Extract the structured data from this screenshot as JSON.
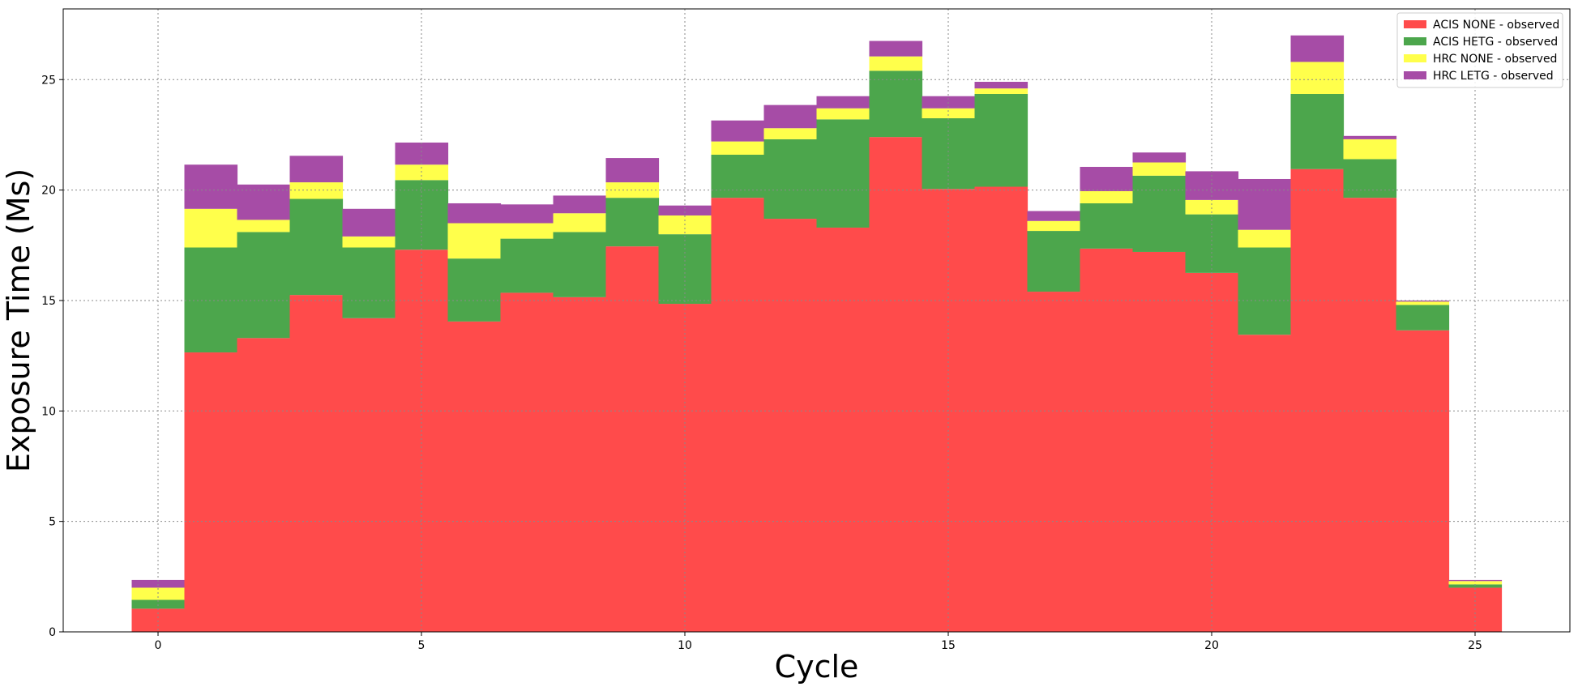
{
  "chart_data": {
    "type": "bar",
    "stacked": true,
    "bar_style": "step",
    "xlabel": "Cycle",
    "ylabel": "Exposure Time (Ms)",
    "x": [
      0,
      1,
      2,
      3,
      4,
      5,
      6,
      7,
      8,
      9,
      10,
      11,
      12,
      13,
      14,
      15,
      16,
      17,
      18,
      19,
      20,
      21,
      22,
      23,
      24,
      25
    ],
    "xlim": [
      -1.8,
      26.8
    ],
    "ylim": [
      0,
      28.2
    ],
    "xticks": [
      0,
      5,
      10,
      15,
      20,
      25
    ],
    "yticks": [
      0,
      5,
      10,
      15,
      20,
      25
    ],
    "grid": true,
    "legend_position": "top-right",
    "series": [
      {
        "name": "ACIS NONE - observed",
        "color": "#ff4b4b",
        "values": [
          1.05,
          12.65,
          13.3,
          15.25,
          14.2,
          17.3,
          14.05,
          15.35,
          15.15,
          17.45,
          14.85,
          19.65,
          18.7,
          18.3,
          22.4,
          20.05,
          20.15,
          15.4,
          17.35,
          17.2,
          16.25,
          13.45,
          20.95,
          19.65,
          13.65,
          2.0
        ]
      },
      {
        "name": "ACIS HETG - observed",
        "color": "#4ca64c",
        "values": [
          0.4,
          4.75,
          4.8,
          4.35,
          3.2,
          3.15,
          2.85,
          2.45,
          2.95,
          2.2,
          3.15,
          1.95,
          3.6,
          4.9,
          3.0,
          3.2,
          4.2,
          2.75,
          2.05,
          3.45,
          2.65,
          3.95,
          3.4,
          1.75,
          1.15,
          0.15
        ]
      },
      {
        "name": "HRC NONE - observed",
        "color": "#ffff4b",
        "values": [
          0.55,
          1.75,
          0.55,
          0.75,
          0.5,
          0.7,
          1.6,
          0.7,
          0.85,
          0.7,
          0.85,
          0.6,
          0.5,
          0.5,
          0.65,
          0.45,
          0.25,
          0.45,
          0.55,
          0.6,
          0.65,
          0.8,
          1.45,
          0.9,
          0.15,
          0.15
        ]
      },
      {
        "name": "HRC LETG - observed",
        "color": "#a64ca6",
        "values": [
          0.35,
          2.0,
          1.6,
          1.2,
          1.25,
          1.0,
          0.9,
          0.85,
          0.8,
          1.1,
          0.45,
          0.95,
          1.05,
          0.55,
          0.7,
          0.55,
          0.3,
          0.45,
          1.1,
          0.45,
          1.3,
          2.3,
          1.2,
          0.15,
          0.05,
          0.05
        ]
      }
    ]
  }
}
